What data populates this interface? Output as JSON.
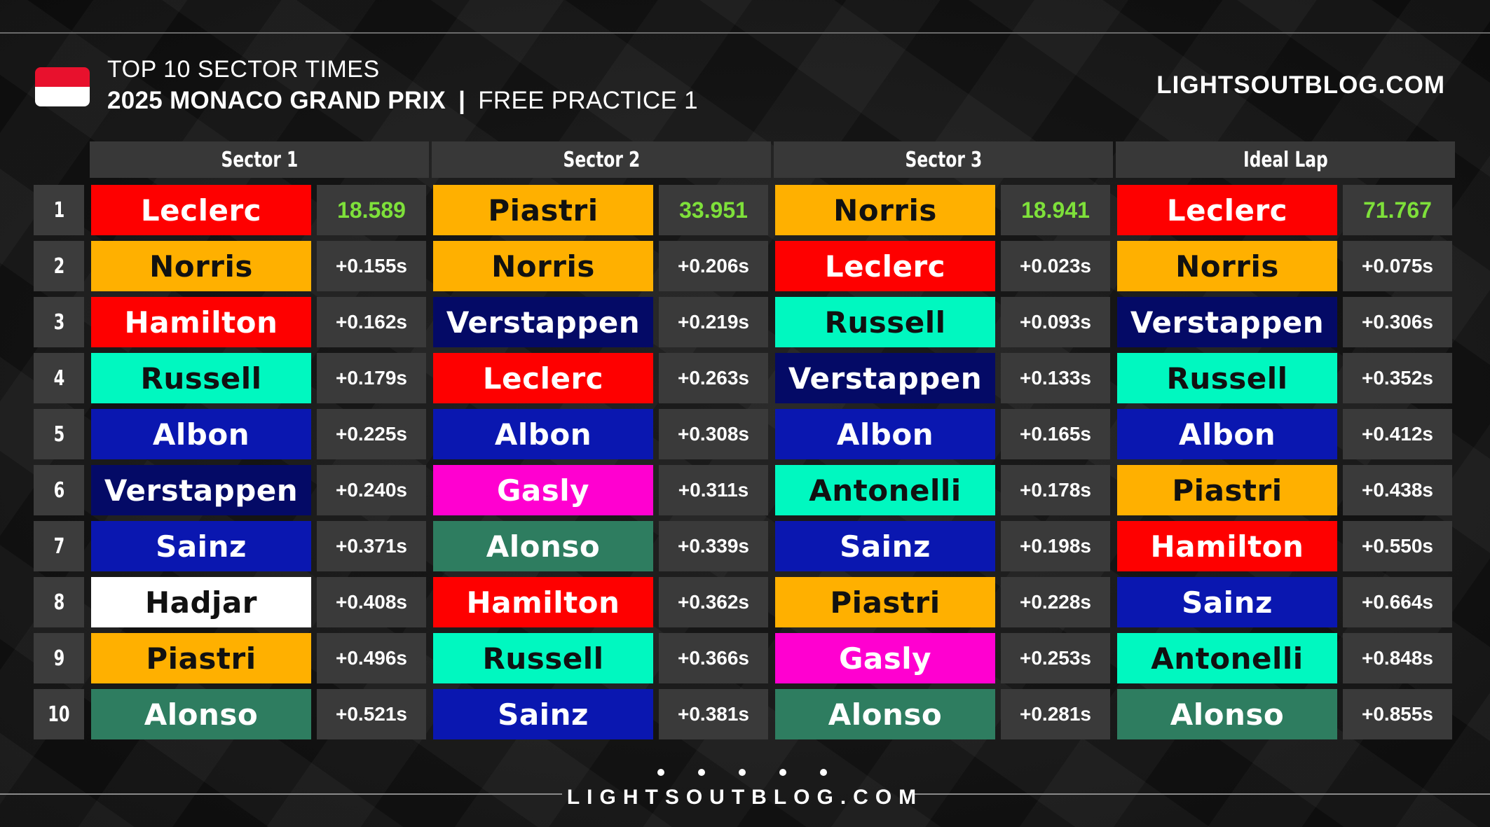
{
  "header": {
    "title_line1": "TOP 10 SECTOR TIMES",
    "event": "2025 MONACO GRAND PRIX",
    "separator": "|",
    "session": "FREE PRACTICE 1",
    "brand": "LIGHTSOUTBLOG.COM",
    "flag_colors": [
      "#e8112d",
      "#ffffff"
    ]
  },
  "columns": [
    {
      "label": "Sector 1",
      "rows": [
        {
          "driver": "Leclerc",
          "time": "18.589"
        },
        {
          "driver": "Norris",
          "time": "+0.155s"
        },
        {
          "driver": "Hamilton",
          "time": "+0.162s"
        },
        {
          "driver": "Russell",
          "time": "+0.179s"
        },
        {
          "driver": "Albon",
          "time": "+0.225s"
        },
        {
          "driver": "Verstappen",
          "time": "+0.240s"
        },
        {
          "driver": "Sainz",
          "time": "+0.371s"
        },
        {
          "driver": "Hadjar",
          "time": "+0.408s"
        },
        {
          "driver": "Piastri",
          "time": "+0.496s"
        },
        {
          "driver": "Alonso",
          "time": "+0.521s"
        }
      ]
    },
    {
      "label": "Sector 2",
      "rows": [
        {
          "driver": "Piastri",
          "time": "33.951"
        },
        {
          "driver": "Norris",
          "time": "+0.206s"
        },
        {
          "driver": "Verstappen",
          "time": "+0.219s"
        },
        {
          "driver": "Leclerc",
          "time": "+0.263s"
        },
        {
          "driver": "Albon",
          "time": "+0.308s"
        },
        {
          "driver": "Gasly",
          "time": "+0.311s"
        },
        {
          "driver": "Alonso",
          "time": "+0.339s"
        },
        {
          "driver": "Hamilton",
          "time": "+0.362s"
        },
        {
          "driver": "Russell",
          "time": "+0.366s"
        },
        {
          "driver": "Sainz",
          "time": "+0.381s"
        }
      ]
    },
    {
      "label": "Sector 3",
      "rows": [
        {
          "driver": "Norris",
          "time": "18.941"
        },
        {
          "driver": "Leclerc",
          "time": "+0.023s"
        },
        {
          "driver": "Russell",
          "time": "+0.093s"
        },
        {
          "driver": "Verstappen",
          "time": "+0.133s"
        },
        {
          "driver": "Albon",
          "time": "+0.165s"
        },
        {
          "driver": "Antonelli",
          "time": "+0.178s"
        },
        {
          "driver": "Sainz",
          "time": "+0.198s"
        },
        {
          "driver": "Piastri",
          "time": "+0.228s"
        },
        {
          "driver": "Gasly",
          "time": "+0.253s"
        },
        {
          "driver": "Alonso",
          "time": "+0.281s"
        }
      ]
    },
    {
      "label": "Ideal Lap",
      "rows": [
        {
          "driver": "Leclerc",
          "time": "71.767"
        },
        {
          "driver": "Norris",
          "time": "+0.075s"
        },
        {
          "driver": "Verstappen",
          "time": "+0.306s"
        },
        {
          "driver": "Russell",
          "time": "+0.352s"
        },
        {
          "driver": "Albon",
          "time": "+0.412s"
        },
        {
          "driver": "Piastri",
          "time": "+0.438s"
        },
        {
          "driver": "Hamilton",
          "time": "+0.550s"
        },
        {
          "driver": "Sainz",
          "time": "+0.664s"
        },
        {
          "driver": "Antonelli",
          "time": "+0.848s"
        },
        {
          "driver": "Alonso",
          "time": "+0.855s"
        }
      ]
    }
  ],
  "positions": [
    "1",
    "2",
    "3",
    "4",
    "5",
    "6",
    "7",
    "8",
    "9",
    "10"
  ],
  "team_colors": {
    "Leclerc": {
      "bg": "#fe0000",
      "fg": "#ffffff"
    },
    "Hamilton": {
      "bg": "#fe0000",
      "fg": "#ffffff"
    },
    "Norris": {
      "bg": "#ffb000",
      "fg": "#111111"
    },
    "Piastri": {
      "bg": "#ffb000",
      "fg": "#111111"
    },
    "Russell": {
      "bg": "#00f8c0",
      "fg": "#111111"
    },
    "Antonelli": {
      "bg": "#00f8c0",
      "fg": "#111111"
    },
    "Albon": {
      "bg": "#0a17b0",
      "fg": "#ffffff"
    },
    "Sainz": {
      "bg": "#0a17b0",
      "fg": "#ffffff"
    },
    "Verstappen": {
      "bg": "#040a66",
      "fg": "#ffffff"
    },
    "Gasly": {
      "bg": "#ff00d0",
      "fg": "#ffffff"
    },
    "Alonso": {
      "bg": "#2e7d60",
      "fg": "#ffffff"
    },
    "Hadjar": {
      "bg": "#ffffff",
      "fg": "#111111"
    }
  },
  "best_time_color": "#7ee03a",
  "footer": {
    "text": "LIGHTSOUTBLOG.COM"
  }
}
